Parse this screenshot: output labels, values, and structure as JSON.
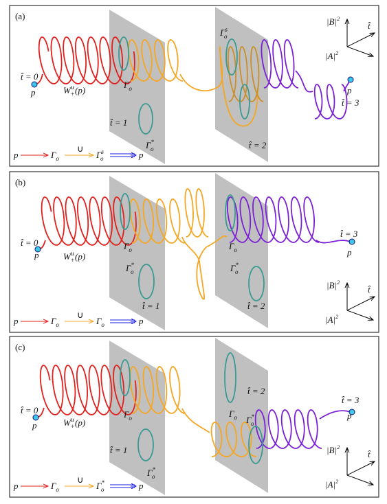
{
  "panels": [
    {
      "label": "(a)",
      "labels": {
        "t0": "t̂ = 0",
        "p_start": "p",
        "manifold": {
          "base": "W",
          "sup": "u",
          "sub": "+",
          "after": "(p)"
        },
        "gamma_o1": {
          "base": "Γ",
          "sub": "o"
        },
        "t1": "t̂ = 1",
        "gamma_star1": {
          "base": "Γ",
          "sup": "*",
          "sub": "o"
        },
        "gamma_s2": {
          "base": "Γ",
          "sup": "s",
          "sub": "o"
        },
        "t2": "t̂ = 2",
        "t3": "t̂ = 3",
        "p_end": "p",
        "axis_b": {
          "base": "|B|",
          "sup": "2"
        },
        "axis_t": "t̂",
        "axis_a": {
          "base": "|A|",
          "sup": "2"
        }
      },
      "legend": {
        "start": "p",
        "mid": {
          "base": "Γ",
          "sub": "o"
        },
        "union": "∪",
        "target": {
          "base": "Γ",
          "sup": "s",
          "sub": "o"
        },
        "end": "p"
      }
    },
    {
      "label": "(b)",
      "labels": {
        "t0": "t̂ = 0",
        "p_start": "p",
        "manifold": {
          "base": "W",
          "sup": "u",
          "sub": "+",
          "after": "(p)"
        },
        "gamma_o1": {
          "base": "Γ",
          "sub": "o"
        },
        "gamma_star1": {
          "base": "Γ",
          "sup": "*",
          "sub": "o"
        },
        "t1": "t̂ = 1",
        "gamma_o2": {
          "base": "Γ",
          "sub": "o"
        },
        "gamma_star2": {
          "base": "Γ",
          "sup": "*",
          "sub": "o"
        },
        "t2": "t̂ = 2",
        "t3": "t̂ = 3",
        "p_end": "p",
        "axis_b": {
          "base": "|B|",
          "sup": "2"
        },
        "axis_t": "t̂",
        "axis_a": {
          "base": "|A|",
          "sup": "2"
        }
      },
      "legend": {
        "start": "p",
        "mid": {
          "base": "Γ",
          "sub": "o"
        },
        "union": "∪",
        "target": {
          "base": "Γ",
          "sub": "o"
        },
        "end": "p"
      }
    },
    {
      "label": "(c)",
      "labels": {
        "t0": "t̂ = 0",
        "p_start": "p",
        "manifold": {
          "base": "W",
          "sup": "u",
          "sub": "+",
          "after": "(p)"
        },
        "gamma_o1": {
          "base": "Γ",
          "sub": "o"
        },
        "t1": "t̂ = 1",
        "gamma_star1": {
          "base": "Γ",
          "sup": "*",
          "sub": "o"
        },
        "t2": "t̂ = 2",
        "gamma_o2": {
          "base": "Γ",
          "sub": "o"
        },
        "gamma_star2": {
          "base": "Γ",
          "sup": "*",
          "sub": "o"
        },
        "t3": "t̂ = 3",
        "p_end": "p",
        "axis_b": {
          "base": "|B|",
          "sup": "2"
        },
        "axis_t": "t̂",
        "axis_a": {
          "base": "|A|",
          "sup": "2"
        }
      },
      "legend": {
        "start": "p",
        "mid": {
          "base": "Γ",
          "sub": "o"
        },
        "union": "∪",
        "target": {
          "base": "Γ",
          "sup": "*",
          "sub": "o"
        },
        "end": "p"
      }
    }
  ]
}
